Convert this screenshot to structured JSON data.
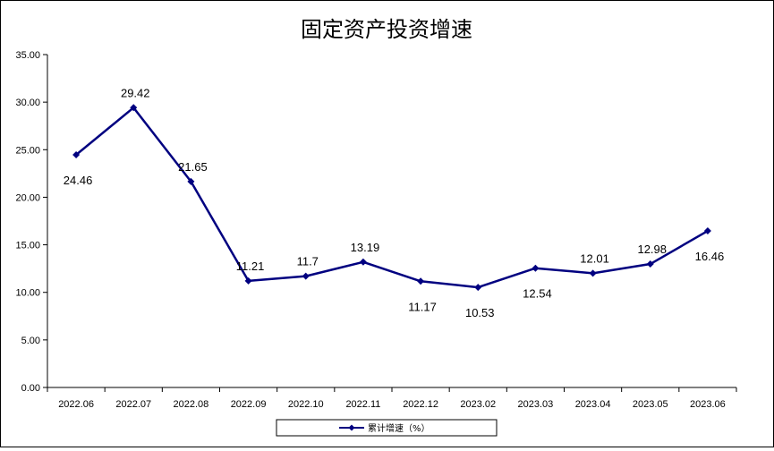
{
  "chart_data": {
    "type": "line",
    "title": "固定资产投资增速",
    "categories": [
      "2022.06",
      "2022.07",
      "2022.08",
      "2022.09",
      "2022.10",
      "2022.11",
      "2022.12",
      "2023.02",
      "2023.03",
      "2023.04",
      "2023.05",
      "2023.06"
    ],
    "series": [
      {
        "name": "累计增速（%）",
        "values": [
          24.46,
          29.42,
          21.65,
          11.21,
          11.7,
          13.19,
          11.17,
          10.53,
          12.54,
          12.01,
          12.98,
          16.46
        ],
        "labels": [
          "24.46",
          "29.42",
          "21.65",
          "11.21",
          "11.7",
          "13.19",
          "11.17",
          "10.53",
          "12.54",
          "12.01",
          "12.98",
          "16.46"
        ],
        "label_position": [
          "below",
          "above",
          "above",
          "above",
          "above",
          "above",
          "below",
          "below",
          "below",
          "above",
          "above",
          "below"
        ],
        "color": "#000080"
      }
    ],
    "y_ticks": [
      "0.00",
      "5.00",
      "10.00",
      "15.00",
      "20.00",
      "25.00",
      "30.00",
      "35.00"
    ],
    "ylim": [
      0,
      35
    ],
    "xlabel": "",
    "ylabel": "",
    "grid": false,
    "legend_position": "bottom"
  }
}
